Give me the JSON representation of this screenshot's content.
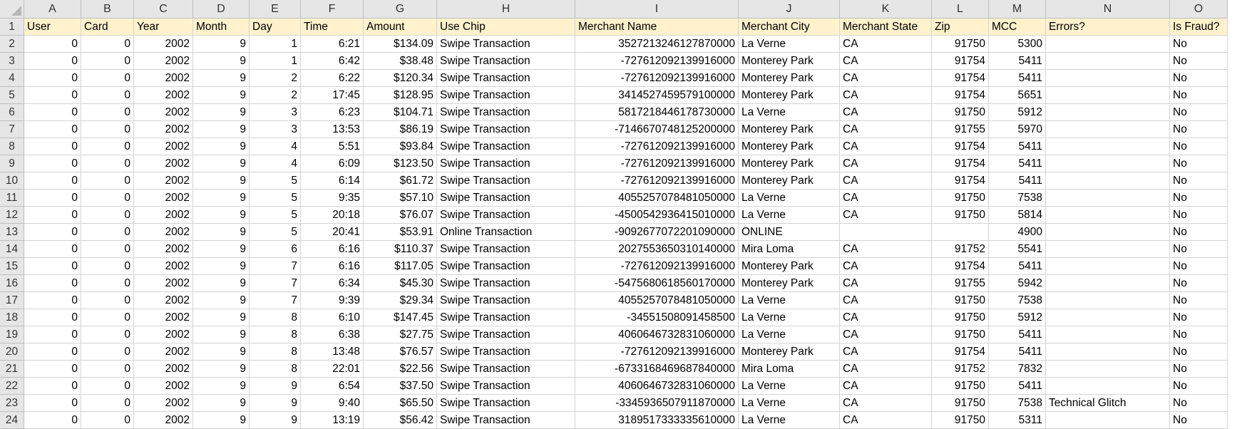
{
  "column_letters": [
    "A",
    "B",
    "C",
    "D",
    "E",
    "F",
    "G",
    "H",
    "I",
    "J",
    "K",
    "L",
    "M",
    "N",
    "O"
  ],
  "headers": [
    "User",
    "Card",
    "Year",
    "Month",
    "Day",
    "Time",
    "Amount",
    "Use Chip",
    "Merchant Name",
    "Merchant City",
    "Merchant State",
    "Zip",
    "MCC",
    "Errors?",
    "Is Fraud?"
  ],
  "rows": [
    [
      "0",
      "0",
      "2002",
      "9",
      "1",
      "6:21",
      "$134.09",
      "Swipe Transaction",
      "3527213246127870000",
      "La Verne",
      "CA",
      "91750",
      "5300",
      "",
      "No"
    ],
    [
      "0",
      "0",
      "2002",
      "9",
      "1",
      "6:42",
      "$38.48",
      "Swipe Transaction",
      "-727612092139916000",
      "Monterey Park",
      "CA",
      "91754",
      "5411",
      "",
      "No"
    ],
    [
      "0",
      "0",
      "2002",
      "9",
      "2",
      "6:22",
      "$120.34",
      "Swipe Transaction",
      "-727612092139916000",
      "Monterey Park",
      "CA",
      "91754",
      "5411",
      "",
      "No"
    ],
    [
      "0",
      "0",
      "2002",
      "9",
      "2",
      "17:45",
      "$128.95",
      "Swipe Transaction",
      "3414527459579100000",
      "Monterey Park",
      "CA",
      "91754",
      "5651",
      "",
      "No"
    ],
    [
      "0",
      "0",
      "2002",
      "9",
      "3",
      "6:23",
      "$104.71",
      "Swipe Transaction",
      "5817218446178730000",
      "La Verne",
      "CA",
      "91750",
      "5912",
      "",
      "No"
    ],
    [
      "0",
      "0",
      "2002",
      "9",
      "3",
      "13:53",
      "$86.19",
      "Swipe Transaction",
      "-7146670748125200000",
      "Monterey Park",
      "CA",
      "91755",
      "5970",
      "",
      "No"
    ],
    [
      "0",
      "0",
      "2002",
      "9",
      "4",
      "5:51",
      "$93.84",
      "Swipe Transaction",
      "-727612092139916000",
      "Monterey Park",
      "CA",
      "91754",
      "5411",
      "",
      "No"
    ],
    [
      "0",
      "0",
      "2002",
      "9",
      "4",
      "6:09",
      "$123.50",
      "Swipe Transaction",
      "-727612092139916000",
      "Monterey Park",
      "CA",
      "91754",
      "5411",
      "",
      "No"
    ],
    [
      "0",
      "0",
      "2002",
      "9",
      "5",
      "6:14",
      "$61.72",
      "Swipe Transaction",
      "-727612092139916000",
      "Monterey Park",
      "CA",
      "91754",
      "5411",
      "",
      "No"
    ],
    [
      "0",
      "0",
      "2002",
      "9",
      "5",
      "9:35",
      "$57.10",
      "Swipe Transaction",
      "4055257078481050000",
      "La Verne",
      "CA",
      "91750",
      "7538",
      "",
      "No"
    ],
    [
      "0",
      "0",
      "2002",
      "9",
      "5",
      "20:18",
      "$76.07",
      "Swipe Transaction",
      "-4500542936415010000",
      "La Verne",
      "CA",
      "91750",
      "5814",
      "",
      "No"
    ],
    [
      "0",
      "0",
      "2002",
      "9",
      "5",
      "20:41",
      "$53.91",
      "Online Transaction",
      "-9092677072201090000",
      "ONLINE",
      "",
      "",
      "4900",
      "",
      "No"
    ],
    [
      "0",
      "0",
      "2002",
      "9",
      "6",
      "6:16",
      "$110.37",
      "Swipe Transaction",
      "2027553650310140000",
      "Mira Loma",
      "CA",
      "91752",
      "5541",
      "",
      "No"
    ],
    [
      "0",
      "0",
      "2002",
      "9",
      "7",
      "6:16",
      "$117.05",
      "Swipe Transaction",
      "-727612092139916000",
      "Monterey Park",
      "CA",
      "91754",
      "5411",
      "",
      "No"
    ],
    [
      "0",
      "0",
      "2002",
      "9",
      "7",
      "6:34",
      "$45.30",
      "Swipe Transaction",
      "-5475680618560170000",
      "Monterey Park",
      "CA",
      "91755",
      "5942",
      "",
      "No"
    ],
    [
      "0",
      "0",
      "2002",
      "9",
      "7",
      "9:39",
      "$29.34",
      "Swipe Transaction",
      "4055257078481050000",
      "La Verne",
      "CA",
      "91750",
      "7538",
      "",
      "No"
    ],
    [
      "0",
      "0",
      "2002",
      "9",
      "8",
      "6:10",
      "$147.45",
      "Swipe Transaction",
      "-34551508091458500",
      "La Verne",
      "CA",
      "91750",
      "5912",
      "",
      "No"
    ],
    [
      "0",
      "0",
      "2002",
      "9",
      "8",
      "6:38",
      "$27.75",
      "Swipe Transaction",
      "4060646732831060000",
      "La Verne",
      "CA",
      "91750",
      "5411",
      "",
      "No"
    ],
    [
      "0",
      "0",
      "2002",
      "9",
      "8",
      "13:48",
      "$76.57",
      "Swipe Transaction",
      "-727612092139916000",
      "Monterey Park",
      "CA",
      "91754",
      "5411",
      "",
      "No"
    ],
    [
      "0",
      "0",
      "2002",
      "9",
      "8",
      "22:01",
      "$22.56",
      "Swipe Transaction",
      "-6733168469687840000",
      "Mira Loma",
      "CA",
      "91752",
      "7832",
      "",
      "No"
    ],
    [
      "0",
      "0",
      "2002",
      "9",
      "9",
      "6:54",
      "$37.50",
      "Swipe Transaction",
      "4060646732831060000",
      "La Verne",
      "CA",
      "91750",
      "5411",
      "",
      "No"
    ],
    [
      "0",
      "0",
      "2002",
      "9",
      "9",
      "9:40",
      "$65.50",
      "Swipe Transaction",
      "-3345936507911870000",
      "La Verne",
      "CA",
      "91750",
      "7538",
      "Technical Glitch",
      "No"
    ],
    [
      "0",
      "0",
      "2002",
      "9",
      "9",
      "13:19",
      "$56.42",
      "Swipe Transaction",
      "3189517333335610000",
      "La Verne",
      "CA",
      "91750",
      "5311",
      "",
      "No"
    ]
  ]
}
